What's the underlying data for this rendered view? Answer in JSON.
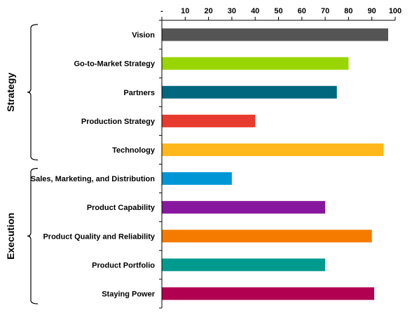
{
  "chart_data": {
    "type": "bar",
    "orientation": "horizontal",
    "title": "",
    "xlabel": "",
    "ylabel": "",
    "xlim": [
      0,
      100
    ],
    "x_ticks": [
      "-",
      "10",
      "20",
      "30",
      "40",
      "50",
      "60",
      "70",
      "80",
      "90",
      "100"
    ],
    "x_axis_position": "top",
    "grid": false,
    "legend": "none",
    "categories": [
      "Vision",
      "Go-to-Market Strategy",
      "Partners",
      "Production Strategy",
      "Technology",
      "Sales, Marketing, and Distribution",
      "Product Capability",
      "Product Quality and Reliability",
      "Product Portfolio",
      "Staying Power"
    ],
    "values": [
      97,
      80,
      75,
      40,
      95,
      30,
      70,
      90,
      70,
      91
    ],
    "colors": [
      "#555555",
      "#99d600",
      "#00677f",
      "#e63b2e",
      "#ffb71b",
      "#0096d6",
      "#87189d",
      "#f47b00",
      "#009a8f",
      "#b1004f"
    ],
    "groups": [
      {
        "label": "Strategy",
        "start": 0,
        "end": 4
      },
      {
        "label": "Execution",
        "start": 5,
        "end": 9
      }
    ]
  }
}
